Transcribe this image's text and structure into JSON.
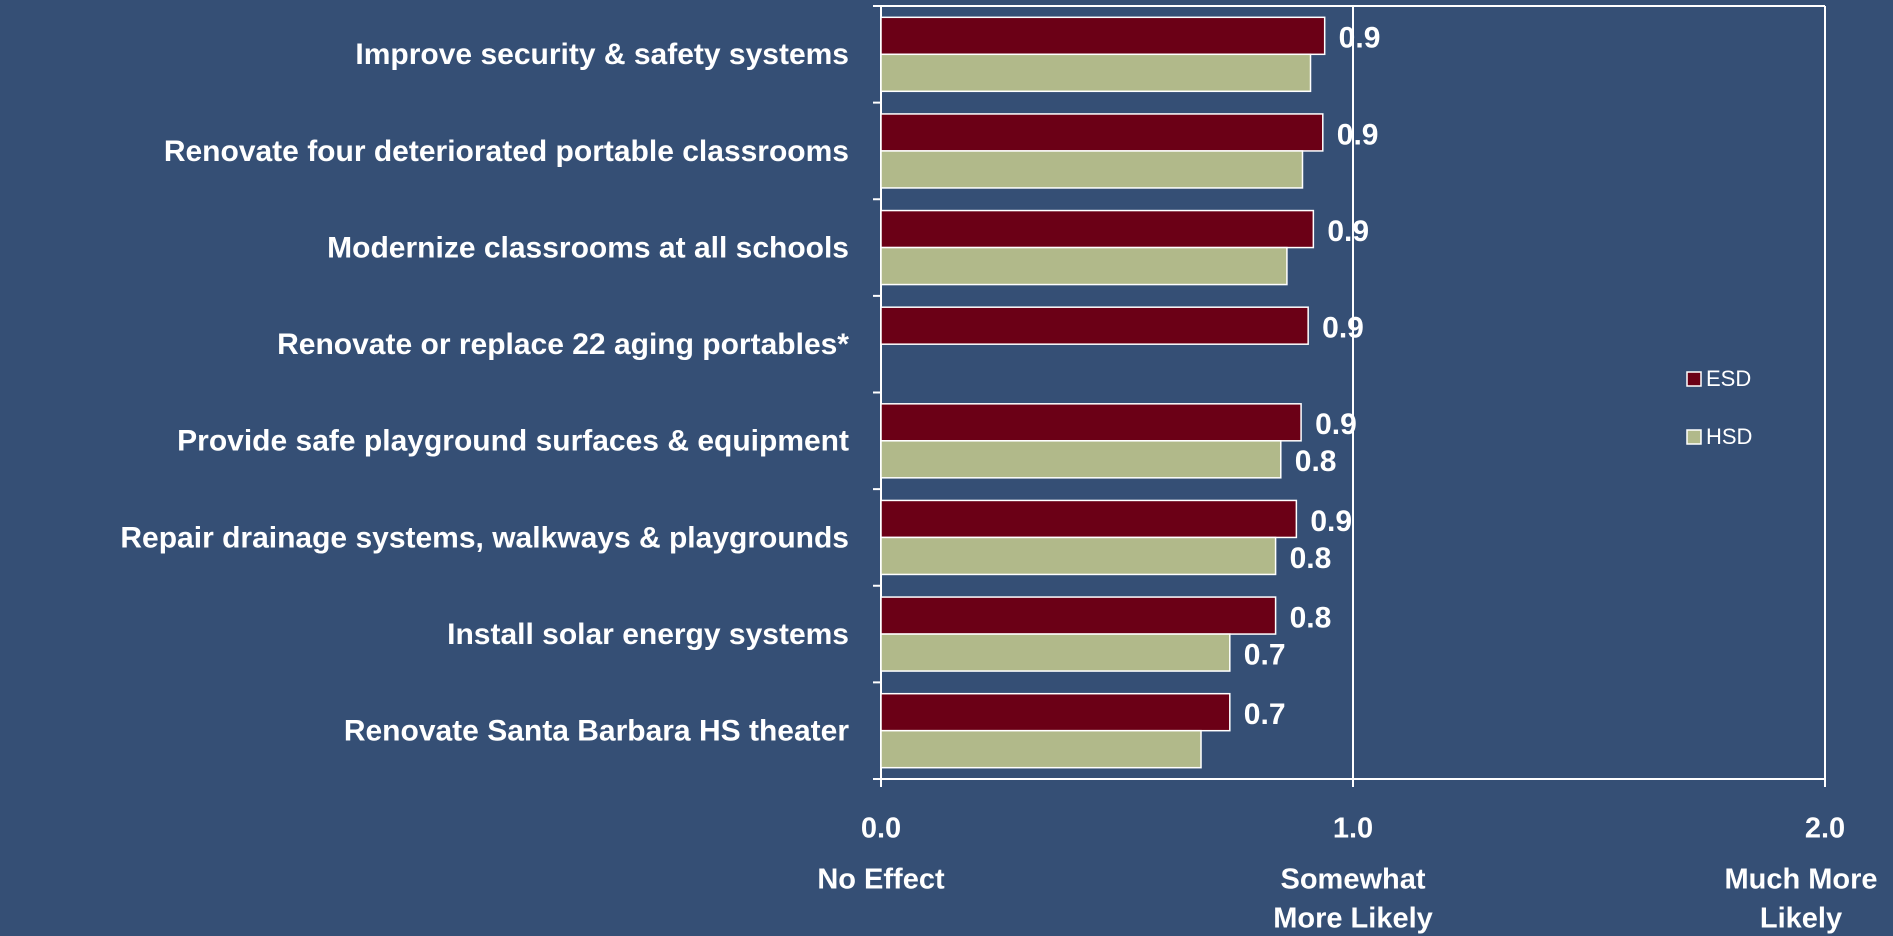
{
  "chart_data": {
    "type": "bar",
    "orientation": "horizontal",
    "categories": [
      "Improve security & safety systems",
      "Renovate four deteriorated portable classrooms",
      "Modernize classrooms at all schools",
      "Renovate or replace 22 aging portables*",
      "Provide safe playground surfaces & equipment",
      "Repair drainage systems, walkways & playgrounds",
      "Install solar energy systems",
      "Renovate Santa Barbara HS theater"
    ],
    "series": [
      {
        "name": "ESD",
        "color": "#6b0016",
        "values": [
          0.94,
          0.936,
          0.916,
          0.905,
          0.89,
          0.88,
          0.836,
          0.739
        ],
        "value_labels": [
          "0.9",
          "0.9",
          "0.9",
          "0.9",
          "0.9",
          "0.9",
          "0.8",
          "0.7"
        ]
      },
      {
        "name": "HSD",
        "color": "#b1b98a",
        "values": [
          0.91,
          0.893,
          0.86,
          null,
          0.847,
          0.836,
          0.739,
          0.678
        ],
        "value_labels": [
          null,
          null,
          null,
          null,
          "0.8",
          "0.8",
          "0.7",
          null
        ]
      }
    ],
    "xlim": [
      0,
      2
    ],
    "xticks": [
      {
        "value": 0,
        "label": "0.0"
      },
      {
        "value": 1,
        "label": "1.0"
      },
      {
        "value": 2,
        "label": "2.0"
      }
    ],
    "xtick_notes": [
      [
        "No Effect"
      ],
      [
        "Somewhat",
        "More Likely"
      ],
      [
        "Much More",
        "Likely"
      ]
    ],
    "grid": true,
    "legend": "right"
  }
}
